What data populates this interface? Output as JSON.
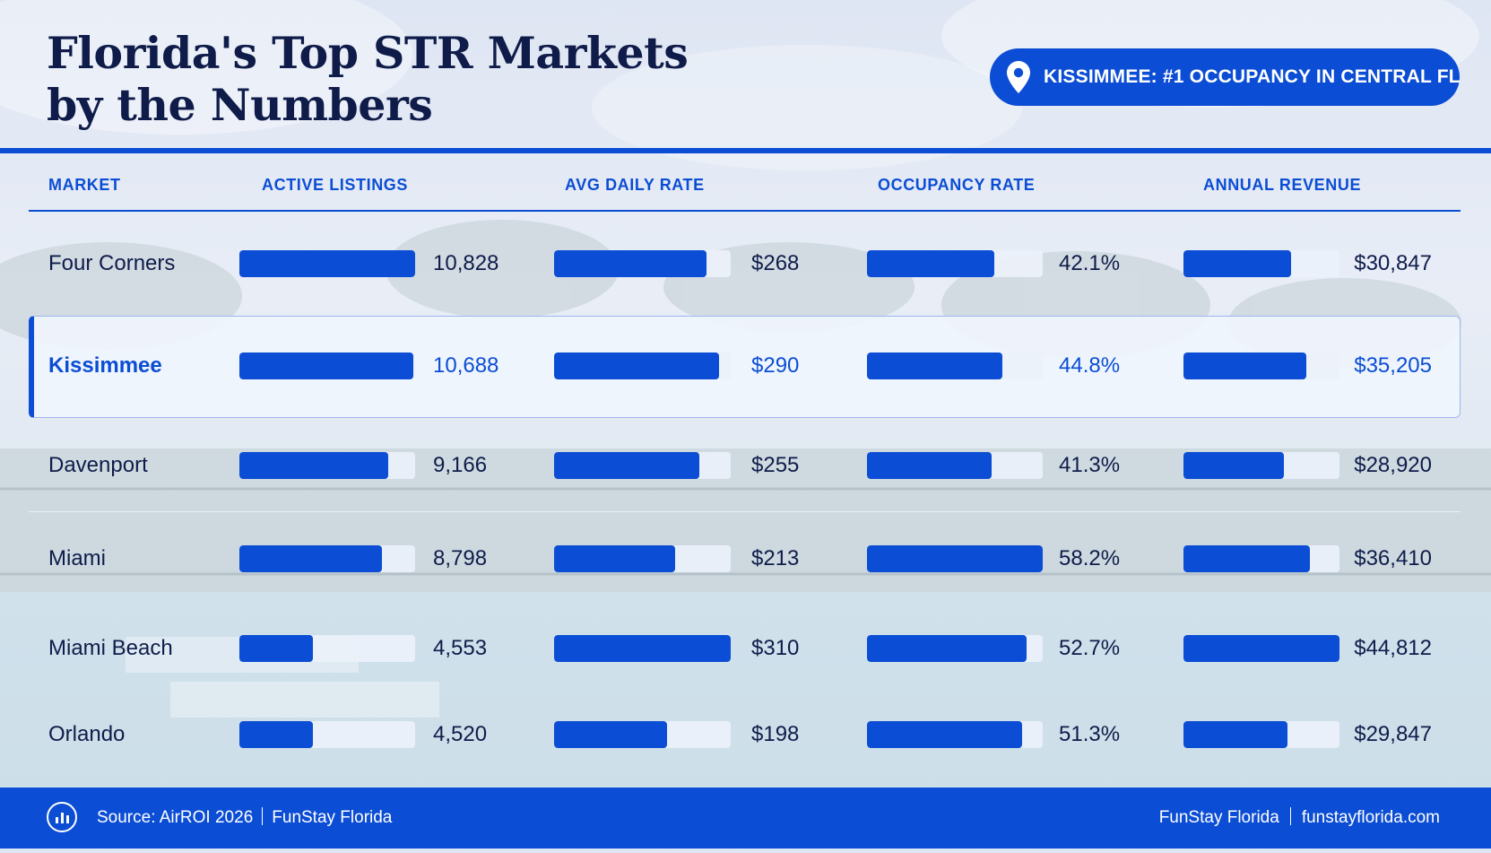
{
  "title_line1": "Florida's Top STR Markets",
  "title_line2": "by the Numbers",
  "badge": {
    "text": "KISSIMMEE: #1 OCCUPANCY IN CENTRAL FL",
    "icon": "location-pin-icon"
  },
  "colors": {
    "accent": "#0b4dd4",
    "text": "#0f1c4a",
    "track": "#eaf0fa"
  },
  "headers": {
    "market": "MARKET",
    "listings": "ACTIVE LISTINGS",
    "adr": "AVG DAILY RATE",
    "occupancy": "OCCUPANCY RATE",
    "revenue": "ANNUAL REVENUE"
  },
  "chart_data": {
    "type": "table",
    "highlight_market": "Kissimmee",
    "columns": [
      "Market",
      "Active Listings",
      "Avg Daily Rate",
      "Occupancy Rate",
      "Annual Revenue"
    ],
    "rows": [
      {
        "market": "Four Corners",
        "listings": 10828,
        "listings_label": "10,828",
        "adr": 268,
        "adr_label": "$268",
        "occupancy": 42.1,
        "occupancy_label": "42.1%",
        "revenue": 30847,
        "revenue_label": "$30,847"
      },
      {
        "market": "Kissimmee",
        "listings": 10688,
        "listings_label": "10,688",
        "adr": 290,
        "adr_label": "$290",
        "occupancy": 44.8,
        "occupancy_label": "44.8%",
        "revenue": 35205,
        "revenue_label": "$35,205"
      },
      {
        "market": "Davenport",
        "listings": 9166,
        "listings_label": "9,166",
        "adr": 255,
        "adr_label": "$255",
        "occupancy": 41.3,
        "occupancy_label": "41.3%",
        "revenue": 28920,
        "revenue_label": "$28,920"
      },
      {
        "market": "Miami",
        "listings": 8798,
        "listings_label": "8,798",
        "adr": 213,
        "adr_label": "$213",
        "occupancy": 58.2,
        "occupancy_label": "58.2%",
        "revenue": 36410,
        "revenue_label": "$36,410"
      },
      {
        "market": "Miami Beach",
        "listings": 4553,
        "listings_label": "4,553",
        "adr": 310,
        "adr_label": "$310",
        "occupancy": 52.7,
        "occupancy_label": "52.7%",
        "revenue": 44812,
        "revenue_label": "$44,812"
      },
      {
        "market": "Orlando",
        "listings": 4520,
        "listings_label": "4,520",
        "adr": 198,
        "adr_label": "$198",
        "occupancy": 51.3,
        "occupancy_label": "51.3%",
        "revenue": 29847,
        "revenue_label": "$29,847"
      }
    ]
  },
  "footer": {
    "source": "Source: AirROI 2026",
    "source_brand": "FunStay Florida",
    "brand": "FunStay Florida",
    "website": "funstayflorida.com",
    "icon": "bar-chart-icon"
  }
}
